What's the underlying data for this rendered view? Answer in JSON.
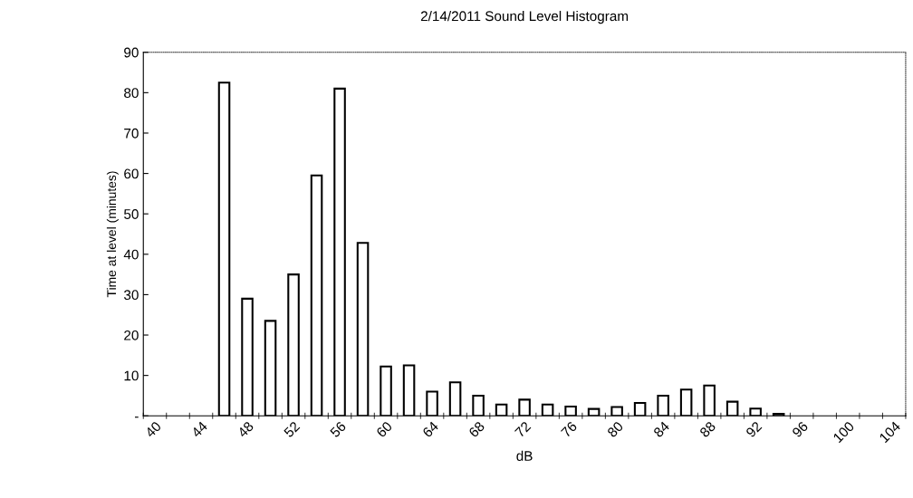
{
  "chart_data": {
    "type": "bar",
    "title": "2/14/2011 Sound Level Histogram",
    "xlabel": "dB",
    "ylabel": "Time at level (minutes)",
    "categories": [
      "40",
      null,
      "44",
      null,
      "48",
      null,
      "52",
      null,
      "56",
      null,
      "60",
      null,
      "64",
      null,
      "68",
      null,
      "72",
      null,
      "76",
      null,
      "80",
      null,
      "84",
      null,
      "88",
      null,
      "92",
      null,
      "96",
      null,
      "100",
      null,
      "104"
    ],
    "values": [
      0,
      0,
      0,
      82.5,
      29,
      23.5,
      35,
      59.5,
      81,
      42.8,
      12.2,
      12.5,
      6,
      8.3,
      5,
      2.8,
      4,
      2.8,
      2.3,
      1.7,
      2.2,
      3.2,
      5,
      6.5,
      7.5,
      3.5,
      1.8,
      0.5,
      0,
      0,
      0,
      0,
      0
    ],
    "color": "#ffffff",
    "ylim": [
      0,
      90
    ],
    "yticks": [
      {
        "value": 0,
        "label": "-"
      },
      10,
      20,
      30,
      40,
      50,
      60,
      70,
      80,
      90
    ],
    "grid": false
  }
}
